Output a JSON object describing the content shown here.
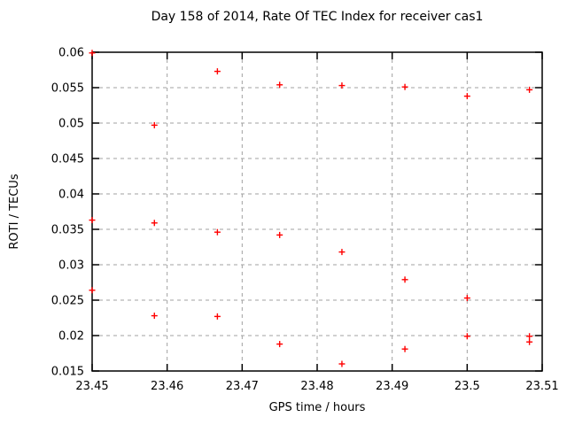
{
  "chart_data": {
    "type": "scatter",
    "title": "Day 158 of 2014, Rate Of TEC Index for receiver cas1",
    "xlabel": "GPS time / hours",
    "ylabel": "ROTI / TECUs",
    "xlim": [
      23.45,
      23.51
    ],
    "ylim": [
      0.015,
      0.06
    ],
    "xticks": [
      23.45,
      23.46,
      23.47,
      23.48,
      23.49,
      23.5,
      23.51
    ],
    "xtick_labels": [
      "23.45",
      "23.46",
      "23.47",
      "23.48",
      "23.49",
      "23.5",
      "23.51"
    ],
    "yticks": [
      0.015,
      0.02,
      0.025,
      0.03,
      0.035,
      0.04,
      0.045,
      0.05,
      0.055,
      0.06
    ],
    "ytick_labels": [
      "0.015",
      "0.02",
      "0.025",
      "0.03",
      "0.035",
      "0.04",
      "0.045",
      "0.05",
      "0.055",
      "0.06"
    ],
    "grid": true,
    "legend": "none",
    "marker": {
      "shape": "plus",
      "color": "#ff0000",
      "size": 7
    },
    "colors": {
      "marker": "#ff0000",
      "grid": "#a0a0a0",
      "axis": "#000000",
      "background": "#ffffff",
      "text": "#000000"
    },
    "series": [
      {
        "name": "ROTI",
        "points": [
          [
            23.45,
            0.0599
          ],
          [
            23.45,
            0.0363
          ],
          [
            23.45,
            0.0264
          ],
          [
            23.4583,
            0.0497
          ],
          [
            23.4583,
            0.0359
          ],
          [
            23.4583,
            0.0228
          ],
          [
            23.4667,
            0.0573
          ],
          [
            23.4667,
            0.0346
          ],
          [
            23.4667,
            0.0227
          ],
          [
            23.475,
            0.0554
          ],
          [
            23.475,
            0.0342
          ],
          [
            23.475,
            0.0188
          ],
          [
            23.4833,
            0.0553
          ],
          [
            23.4833,
            0.0318
          ],
          [
            23.4833,
            0.016
          ],
          [
            23.4917,
            0.0551
          ],
          [
            23.4917,
            0.0279
          ],
          [
            23.4917,
            0.0181
          ],
          [
            23.5,
            0.0538
          ],
          [
            23.5,
            0.0253
          ],
          [
            23.5,
            0.0199
          ],
          [
            23.5083,
            0.0547
          ],
          [
            23.5083,
            0.0199
          ],
          [
            23.5083,
            0.0191
          ]
        ]
      }
    ]
  }
}
